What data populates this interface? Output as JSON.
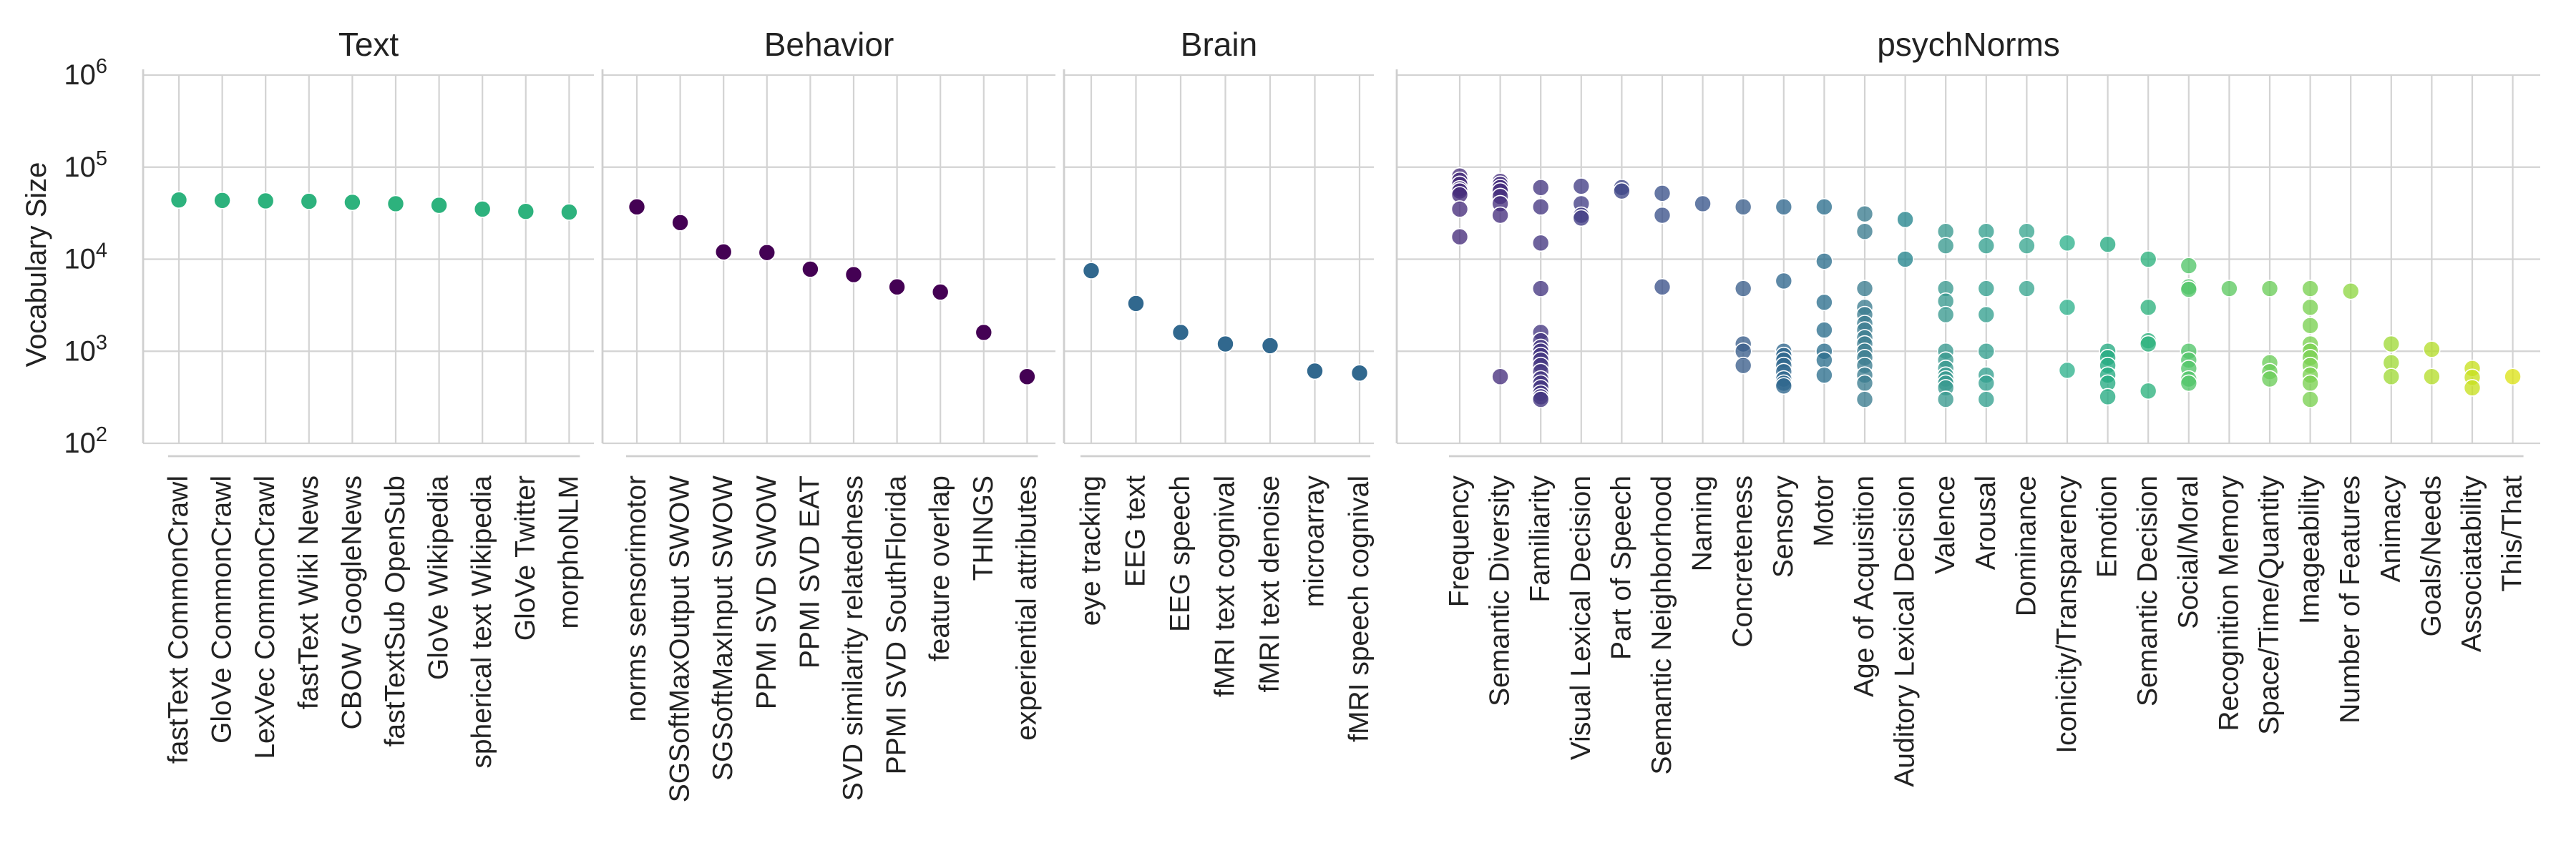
{
  "chart_data": {
    "type": "scatter",
    "ylabel": "Vocabulary Size",
    "yscale": "log",
    "ylim": [
      100,
      1000000
    ],
    "ytick_values": [
      100,
      1000,
      10000,
      100000,
      1000000
    ],
    "ytick_exponents": [
      "2",
      "3",
      "4",
      "5",
      "6"
    ],
    "ytick_base": "10",
    "grid": true,
    "colormap": "viridis",
    "panels": [
      {
        "title": "Text",
        "categories": [
          "fastText CommonCrawl",
          "GloVe CommonCrawl",
          "LexVec CommonCrawl",
          "fastText Wiki News",
          "CBOW GoogleNews",
          "fastTextSub OpenSub",
          "GloVe Wikipedia",
          "spherical text Wikipedia",
          "GloVe Twitter",
          "morphoNLM"
        ],
        "points": [
          {
            "x": "fastText CommonCrawl",
            "y": [
              44000
            ],
            "color": "#2db27d"
          },
          {
            "x": "GloVe CommonCrawl",
            "y": [
              43500
            ],
            "color": "#2db27d"
          },
          {
            "x": "LexVec CommonCrawl",
            "y": [
              43000
            ],
            "color": "#2db27d"
          },
          {
            "x": "fastText Wiki News",
            "y": [
              42500
            ],
            "color": "#2db27d"
          },
          {
            "x": "CBOW GoogleNews",
            "y": [
              41500
            ],
            "color": "#2db27d"
          },
          {
            "x": "fastTextSub OpenSub",
            "y": [
              40000
            ],
            "color": "#2db27d"
          },
          {
            "x": "GloVe Wikipedia",
            "y": [
              38500
            ],
            "color": "#2db27d"
          },
          {
            "x": "spherical text Wikipedia",
            "y": [
              35000
            ],
            "color": "#2db27d"
          },
          {
            "x": "GloVe Twitter",
            "y": [
              33000
            ],
            "color": "#2db27d"
          },
          {
            "x": "morphoNLM",
            "y": [
              32500
            ],
            "color": "#2db27d"
          }
        ]
      },
      {
        "title": "Behavior",
        "categories": [
          "norms sensorimotor",
          "SGSoftMaxOutput SWOW",
          "SGSoftMaxInput SWOW",
          "PPMI SVD SWOW",
          "PPMI SVD EAT",
          "SVD similarity relatedness",
          "PPMI SVD SouthFlorida",
          "feature overlap",
          "THINGS",
          "experiential attributes"
        ],
        "points": [
          {
            "x": "norms sensorimotor",
            "y": [
              37000
            ],
            "color": "#440154"
          },
          {
            "x": "SGSoftMaxOutput SWOW",
            "y": [
              25000
            ],
            "color": "#440154"
          },
          {
            "x": "SGSoftMaxInput SWOW",
            "y": [
              12000
            ],
            "color": "#440154"
          },
          {
            "x": "PPMI SVD SWOW",
            "y": [
              11800
            ],
            "color": "#440154"
          },
          {
            "x": "PPMI SVD EAT",
            "y": [
              7800
            ],
            "color": "#440154"
          },
          {
            "x": "SVD similarity relatedness",
            "y": [
              6800
            ],
            "color": "#440154"
          },
          {
            "x": "PPMI SVD SouthFlorida",
            "y": [
              5000
            ],
            "color": "#440154"
          },
          {
            "x": "feature overlap",
            "y": [
              4400
            ],
            "color": "#440154"
          },
          {
            "x": "THINGS",
            "y": [
              1600
            ],
            "color": "#440154"
          },
          {
            "x": "experiential attributes",
            "y": [
              530
            ],
            "color": "#440154"
          }
        ]
      },
      {
        "title": "Brain",
        "categories": [
          "eye tracking",
          "EEG text",
          "EEG speech",
          "fMRI text cognival",
          "fMRI text denoise",
          "microarray",
          "fMRI speech cognival"
        ],
        "points": [
          {
            "x": "eye tracking",
            "y": [
              7500
            ],
            "color": "#31688e"
          },
          {
            "x": "EEG text",
            "y": [
              3300
            ],
            "color": "#31688e"
          },
          {
            "x": "EEG speech",
            "y": [
              1600
            ],
            "color": "#31688e"
          },
          {
            "x": "fMRI text cognival",
            "y": [
              1200
            ],
            "color": "#31688e"
          },
          {
            "x": "fMRI text denoise",
            "y": [
              1150
            ],
            "color": "#31688e"
          },
          {
            "x": "microarray",
            "y": [
              610
            ],
            "color": "#31688e"
          },
          {
            "x": "fMRI speech cognival",
            "y": [
              580
            ],
            "color": "#31688e"
          }
        ]
      },
      {
        "title": "psychNorms",
        "categories": [
          "Frequency",
          "Semantic Diversity",
          "Familiarity",
          "Visual Lexical Decision",
          "Part of Speech",
          "Semantic Neighborhood",
          "Naming",
          "Concreteness",
          "Sensory",
          "Motor",
          "Age of Acquisition",
          "Auditory Lexical Decision",
          "Valence",
          "Arousal",
          "Dominance",
          "Iconicity/Transparency",
          "Emotion",
          "Semantic Decision",
          "Social/Moral",
          "Recognition Memory",
          "Space/Time/Quantity",
          "Imageability",
          "Number of Features",
          "Animacy",
          "Goals/Needs",
          "Associatability",
          "This/That"
        ],
        "points": [
          {
            "x": "Frequency",
            "y": [
              80000,
              72000,
              65000,
              58000,
              55000,
              50000,
              35000,
              17500
            ],
            "color": "#472d7b"
          },
          {
            "x": "Semantic Diversity",
            "y": [
              70000,
              65000,
              60000,
              55000,
              48000,
              40000,
              30000,
              530
            ],
            "color": "#46307e"
          },
          {
            "x": "Familiarity",
            "y": [
              60000,
              37000,
              15000,
              4800,
              1600,
              1300,
              1100,
              1000,
              900,
              800,
              700,
              600,
              500,
              450,
              400,
              350,
              320,
              300
            ],
            "color": "#453781"
          },
          {
            "x": "Visual Lexical Decision",
            "y": [
              62000,
              40000,
              30000,
              28000
            ],
            "color": "#433e85"
          },
          {
            "x": "Part of Speech",
            "y": [
              60000,
              55000
            ],
            "color": "#3f4788"
          },
          {
            "x": "Semantic Neighborhood",
            "y": [
              52000,
              30000,
              5000
            ],
            "color": "#3b528b"
          },
          {
            "x": "Naming",
            "y": [
              40000
            ],
            "color": "#39568c"
          },
          {
            "x": "Concreteness",
            "y": [
              37000,
              4800,
              1200,
              1000,
              700
            ],
            "color": "#3b5f8c"
          },
          {
            "x": "Sensory",
            "y": [
              37000,
              5800,
              1000,
              900,
              800,
              700,
              600,
              500,
              450,
              420
            ],
            "color": "#31688e"
          },
          {
            "x": "Motor",
            "y": [
              37000,
              9500,
              3400,
              1700,
              1000,
              800,
              550
            ],
            "color": "#2d708e"
          },
          {
            "x": "Age of Acquisition",
            "y": [
              31000,
              20000,
              4800,
              3000,
              2500,
              2000,
              1700,
              1400,
              1200,
              1000,
              850,
              700,
              550,
              450,
              300
            ],
            "color": "#3b7c8f"
          },
          {
            "x": "Auditory Lexical Decision",
            "y": [
              27000,
              10000
            ],
            "color": "#25858e"
          },
          {
            "x": "Valence",
            "y": [
              20000,
              14000,
              4800,
              3500,
              2500,
              1000,
              800,
              650,
              550,
              500,
              450,
              400,
              300
            ],
            "color": "#3a9a8f"
          },
          {
            "x": "Arousal",
            "y": [
              20000,
              14000,
              4800,
              2500,
              1000,
              550,
              450,
              300
            ],
            "color": "#35a08f"
          },
          {
            "x": "Dominance",
            "y": [
              20000,
              14000,
              4800
            ],
            "color": "#3aa691"
          },
          {
            "x": "Iconicity/Transparency",
            "y": [
              15000,
              3000,
              620
            ],
            "color": "#2fb28d"
          },
          {
            "x": "Emotion",
            "y": [
              14500,
              1000,
              850,
              700,
              550,
              450,
              320
            ],
            "color": "#25ab82"
          },
          {
            "x": "Semantic Decision",
            "y": [
              10000,
              3000,
              1300,
              1200,
              370
            ],
            "color": "#2db27d"
          },
          {
            "x": "Social/Moral",
            "y": [
              8500,
              5000,
              4700,
              1000,
              800,
              650,
              500,
              450
            ],
            "color": "#52c569"
          },
          {
            "x": "Recognition Memory",
            "y": [
              4800
            ],
            "color": "#5ec962"
          },
          {
            "x": "Space/Time/Quantity",
            "y": [
              4800,
              750,
              600,
              500
            ],
            "color": "#6ccd5a"
          },
          {
            "x": "Imageability",
            "y": [
              4800,
              3000,
              1900,
              1200,
              1000,
              850,
              700,
              550,
              450,
              300
            ],
            "color": "#7ad151"
          },
          {
            "x": "Number of Features",
            "y": [
              4500
            ],
            "color": "#8fd744"
          },
          {
            "x": "Animacy",
            "y": [
              1200,
              750,
              530
            ],
            "color": "#a0da39"
          },
          {
            "x": "Goals/Needs",
            "y": [
              1050,
              530
            ],
            "color": "#b5de2b"
          },
          {
            "x": "Associatability",
            "y": [
              650,
              520,
              400
            ],
            "color": "#c8e020"
          },
          {
            "x": "This/That",
            "y": [
              530
            ],
            "color": "#dde318"
          }
        ]
      }
    ]
  }
}
